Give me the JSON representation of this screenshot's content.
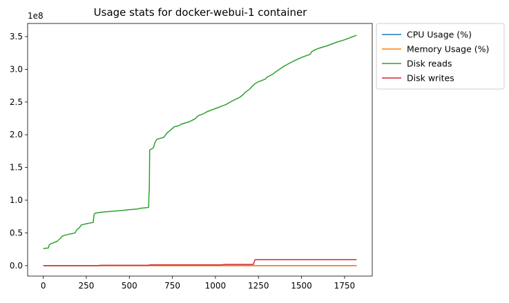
{
  "chart_data": {
    "type": "line",
    "title": "Usage stats for docker-webui-1 container",
    "xlabel": "",
    "ylabel": "",
    "xlim": [
      -91,
      1911
    ],
    "ylim": [
      -16000000,
      370000000
    ],
    "x_ticks": [
      0,
      250,
      500,
      750,
      1000,
      1250,
      1500,
      1750
    ],
    "x_tick_labels": [
      "0",
      "250",
      "500",
      "750",
      "1000",
      "1250",
      "1500",
      "1750"
    ],
    "y_ticks": [
      0,
      50000000,
      100000000,
      150000000,
      200000000,
      250000000,
      300000000,
      350000000
    ],
    "y_tick_labels": [
      "0.0",
      "0.5",
      "1.0",
      "1.5",
      "2.0",
      "2.5",
      "3.0",
      "3.5"
    ],
    "y_offset_label": "1e8",
    "grid": false,
    "legend_position": "outside-top-right",
    "series": [
      {
        "name": "CPU Usage (%)",
        "color": "#1f77b4",
        "x": [
          0,
          1820
        ],
        "y": [
          0,
          0
        ]
      },
      {
        "name": "Memory Usage (%)",
        "color": "#ff7f0e",
        "x": [
          0,
          1820
        ],
        "y": [
          0,
          0
        ]
      },
      {
        "name": "Disk reads",
        "color": "#2ca02c",
        "x": [
          0,
          30,
          35,
          50,
          80,
          100,
          110,
          120,
          150,
          170,
          185,
          195,
          210,
          220,
          250,
          270,
          290,
          295,
          300,
          320,
          350,
          400,
          450,
          500,
          550,
          560,
          600,
          612,
          614,
          616,
          618,
          620,
          640,
          650,
          660,
          700,
          720,
          730,
          760,
          790,
          800,
          850,
          880,
          900,
          930,
          950,
          1000,
          1040,
          1060,
          1100,
          1140,
          1160,
          1170,
          1200,
          1210,
          1230,
          1250,
          1290,
          1300,
          1330,
          1350,
          1400,
          1450,
          1500,
          1550,
          1560,
          1580,
          1600,
          1650,
          1700,
          1750,
          1800,
          1820
        ],
        "y": [
          26000000,
          27000000,
          32000000,
          34000000,
          37000000,
          42000000,
          45000000,
          46000000,
          48000000,
          49000000,
          50000000,
          55000000,
          58000000,
          62000000,
          64000000,
          65000000,
          66000000,
          78000000,
          80000000,
          81000000,
          82000000,
          83000000,
          84000000,
          85500000,
          86500000,
          87500000,
          88500000,
          89000000,
          110000000,
          115000000,
          176000000,
          177000000,
          180000000,
          189000000,
          193000000,
          196000000,
          203000000,
          205000000,
          212000000,
          214000000,
          216000000,
          220000000,
          224000000,
          229000000,
          232000000,
          235000000,
          240000000,
          244000000,
          246000000,
          252000000,
          257000000,
          261000000,
          264000000,
          270000000,
          273000000,
          278000000,
          281000000,
          285000000,
          288000000,
          292000000,
          296000000,
          305000000,
          312000000,
          318000000,
          323000000,
          327000000,
          330000000,
          332000000,
          336000000,
          341000000,
          345000000,
          350000000,
          352000000
        ]
      },
      {
        "name": "Disk writes",
        "color": "#d62728",
        "x": [
          0,
          320,
          330,
          610,
          620,
          1040,
          1050,
          1220,
          1230,
          1820
        ],
        "y": [
          0,
          0,
          500000,
          500000,
          1200000,
          1200000,
          1800000,
          1800000,
          9000000,
          9000000
        ]
      }
    ]
  }
}
